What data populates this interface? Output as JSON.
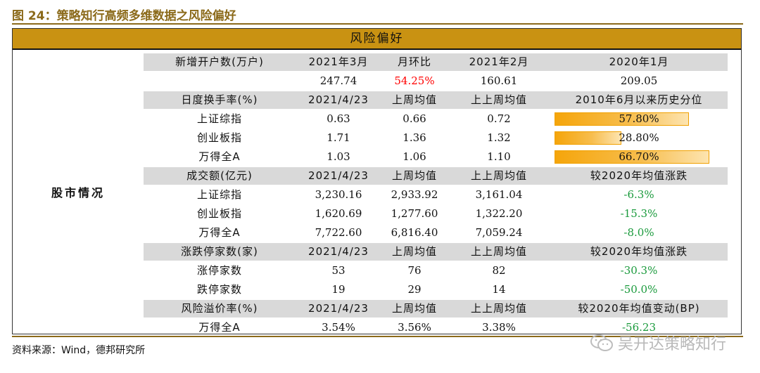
{
  "figure_title": "图 24：策略知行高频多维数据之风险偏好",
  "banner": "风险偏好",
  "side_label": "股市情况",
  "sections": [
    {
      "header": [
        "新增开户数(万户)",
        "2021年3月",
        "月环比",
        "2021年2月",
        "2020年1月"
      ],
      "rows": [
        {
          "label": "",
          "values": [
            "247.74",
            "54.25%",
            "160.61",
            "209.05"
          ],
          "colors": [
            "",
            "red",
            "",
            ""
          ]
        }
      ]
    },
    {
      "header": [
        "日度换手率(%)",
        "2021/4/23",
        "上周均值",
        "上上周均值",
        "2010年6月以来历史分位"
      ],
      "rows": [
        {
          "label": "上证综指",
          "values": [
            "0.63",
            "0.66",
            "0.72",
            "57.80%"
          ],
          "bar": 0.578
        },
        {
          "label": "创业板指",
          "values": [
            "1.71",
            "1.36",
            "1.32",
            "28.80%"
          ],
          "bar": 0.288
        },
        {
          "label": "万得全A",
          "values": [
            "1.03",
            "1.06",
            "1.10",
            "66.70%"
          ],
          "bar": 0.667
        }
      ]
    },
    {
      "header": [
        "成交额(亿元)",
        "2021/4/23",
        "上周均值",
        "上上周均值",
        "较2020年均值涨跌"
      ],
      "rows": [
        {
          "label": "上证综指",
          "values": [
            "3,230.16",
            "2,933.92",
            "3,161.04",
            "-6.3%"
          ],
          "colors": [
            "",
            "",
            "",
            "green"
          ]
        },
        {
          "label": "创业板指",
          "values": [
            "1,620.69",
            "1,277.60",
            "1,322.20",
            "-15.3%"
          ],
          "colors": [
            "",
            "",
            "",
            "green"
          ]
        },
        {
          "label": "万得全A",
          "values": [
            "7,722.60",
            "6,816.40",
            "7,059.24",
            "-8.0%"
          ],
          "colors": [
            "",
            "",
            "",
            "green"
          ]
        }
      ]
    },
    {
      "header": [
        "涨跌停家数(家)",
        "2021/4/23",
        "上周均值",
        "上上周均值",
        "较2020年均值涨跌"
      ],
      "rows": [
        {
          "label": "涨停家数",
          "values": [
            "53",
            "76",
            "82",
            "-30.3%"
          ],
          "colors": [
            "",
            "",
            "",
            "green"
          ]
        },
        {
          "label": "跌停家数",
          "values": [
            "19",
            "29",
            "14",
            "-50.0%"
          ],
          "colors": [
            "",
            "",
            "",
            "green"
          ]
        }
      ]
    },
    {
      "header": [
        "风险溢价率(%)",
        "2021/4/23",
        "上周均值",
        "上上周均值",
        "较2020年均值变动(BP)"
      ],
      "rows": [
        {
          "label": "万得全A",
          "values": [
            "3.54%",
            "3.56%",
            "3.38%",
            "-56.23"
          ],
          "colors": [
            "",
            "",
            "",
            "green"
          ]
        }
      ]
    }
  ],
  "source": "资料来源：Wind，德邦研究所",
  "watermark": "吴开达策略知行",
  "watermark_icon": "wechat-icon",
  "colors": {
    "title": "#8b6a1a",
    "banner": "#c99212",
    "header_row": "#d9d9d9",
    "negative": "#1a9a3c",
    "positive": "#ff0000",
    "bar": "#f5a50b"
  }
}
